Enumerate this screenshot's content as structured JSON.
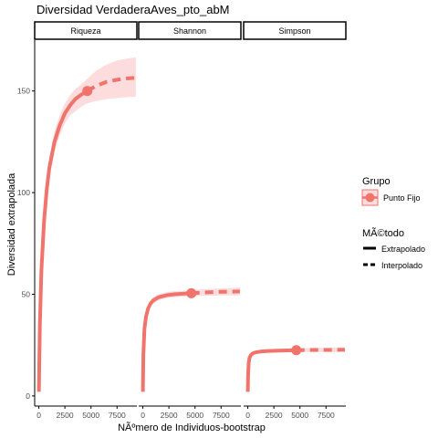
{
  "chart_data": {
    "type": "line",
    "title": "Diversidad VerdaderaAves_pto_abM",
    "xlabel": "NÃºmero de Individuos-bootstrap",
    "ylabel": "Diversidad extrapolada",
    "ylim": [
      -5,
      175
    ],
    "xlim": [
      -400,
      9400
    ],
    "y_ticks": [
      0,
      50,
      100,
      150
    ],
    "x_ticks": [
      0,
      2500,
      5000,
      7500
    ],
    "grid": false,
    "legend": {
      "placement": "right",
      "group_title": "Grupo",
      "group_entry": "Punto Fijo",
      "method_title": "MÃ©todo",
      "method_entries": [
        "Extrapolado",
        "Interpolado"
      ]
    },
    "colors": {
      "line": "#f0736c",
      "ribbon": "#fcdcdc"
    },
    "panels": [
      {
        "name": "Riqueza",
        "observed": {
          "x": 4650,
          "y": 150
        },
        "x": [
          1,
          100,
          250,
          500,
          750,
          1000,
          1500,
          2000,
          2500,
          3000,
          3500,
          4000,
          4650,
          5500,
          6500,
          7500,
          8500,
          9300
        ],
        "y": [
          2,
          35,
          62,
          86,
          101,
          112,
          125,
          133,
          139,
          143,
          146,
          148,
          150,
          152.5,
          154.5,
          155.5,
          156.2,
          156.5
        ],
        "lower": [
          2,
          33,
          59,
          82,
          97,
          107,
          120,
          128,
          134,
          138,
          140,
          142,
          144,
          145,
          146,
          146.5,
          147,
          147.2
        ],
        "upper": [
          2,
          37,
          65,
          90,
          105,
          117,
          130,
          138,
          144,
          148,
          151,
          153,
          156,
          160,
          163,
          165,
          166,
          166.5
        ]
      },
      {
        "name": "Shannon",
        "observed": {
          "x": 4650,
          "y": 50.5
        },
        "x": [
          1,
          50,
          150,
          300,
          500,
          750,
          1000,
          1500,
          2000,
          2500,
          3000,
          4000,
          4650,
          5500,
          6500,
          7500,
          8500,
          9300
        ],
        "y": [
          2,
          20,
          33,
          39,
          43,
          45.5,
          47,
          48.5,
          49.2,
          49.7,
          50,
          50.3,
          50.5,
          50.8,
          51,
          51.2,
          51.3,
          51.4
        ],
        "lower": [
          2,
          19,
          31.5,
          37.5,
          41.5,
          44,
          45.5,
          47,
          47.8,
          48.3,
          48.6,
          48.9,
          49,
          49.2,
          49.3,
          49.4,
          49.5,
          49.5
        ],
        "upper": [
          2,
          21,
          34.5,
          40.5,
          44.5,
          47,
          48.5,
          50,
          50.7,
          51.2,
          51.5,
          51.8,
          52,
          52.3,
          52.6,
          52.9,
          53.1,
          53.3
        ]
      },
      {
        "name": "Simpson",
        "observed": {
          "x": 4650,
          "y": 22.5
        },
        "x": [
          1,
          30,
          80,
          150,
          300,
          500,
          800,
          1200,
          2000,
          3000,
          4650,
          5500,
          6500,
          7500,
          8500,
          9300
        ],
        "y": [
          2,
          10,
          16,
          18.5,
          20.2,
          21,
          21.5,
          21.8,
          22.1,
          22.3,
          22.5,
          22.55,
          22.6,
          22.6,
          22.65,
          22.7
        ],
        "lower": [
          2,
          9.5,
          15.5,
          18,
          19.6,
          20.4,
          20.9,
          21.2,
          21.4,
          21.5,
          21.6,
          21.6,
          21.6,
          21.6,
          21.6,
          21.6
        ],
        "upper": [
          2,
          10.5,
          16.5,
          19,
          20.8,
          21.6,
          22.1,
          22.4,
          22.8,
          23.1,
          23.4,
          23.5,
          23.6,
          23.7,
          23.8,
          23.8
        ]
      }
    ]
  }
}
